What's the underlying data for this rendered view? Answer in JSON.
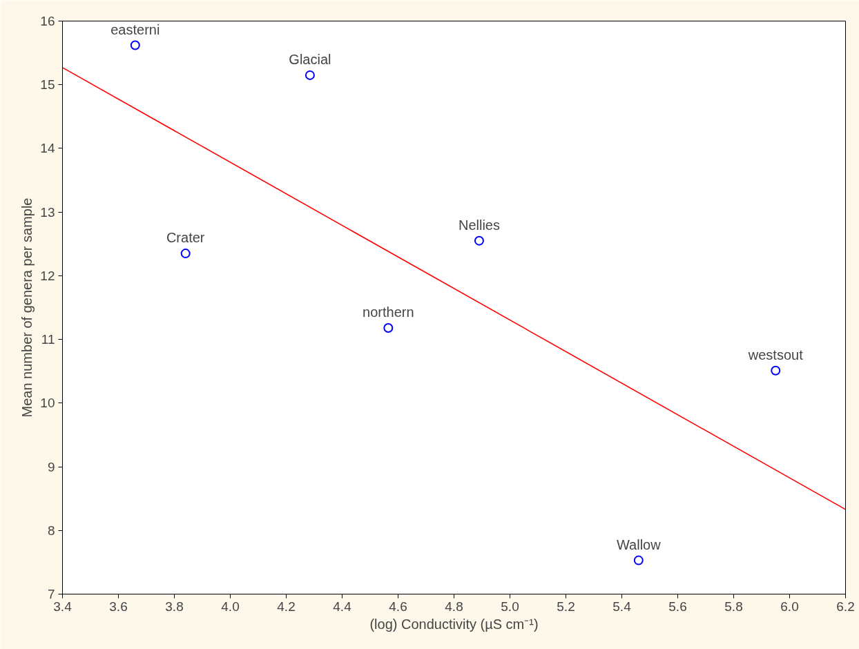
{
  "chart_data": {
    "type": "scatter",
    "xlabel": "(log) Conductivity (µS cm⁻¹)",
    "ylabel": "Mean number of genera per sample",
    "xlim": [
      3.4,
      6.2
    ],
    "ylim": [
      7,
      16
    ],
    "xticks": [
      3.4,
      3.6,
      3.8,
      {
        "value": 4.0,
        "label": "4.0"
      },
      4.2,
      4.4,
      4.6,
      4.8,
      {
        "value": 5.0,
        "label": "5.0"
      },
      5.2,
      5.4,
      5.6,
      5.8,
      {
        "value": 6.0,
        "label": "6.0"
      },
      6.2
    ],
    "yticks": [
      7,
      8,
      9,
      10,
      11,
      12,
      13,
      14,
      15,
      16
    ],
    "grid": false,
    "series": [
      {
        "marker": "circle",
        "color": "#0000ff",
        "x": [
          3.66,
          4.285,
          3.84,
          4.565,
          4.89,
          5.46,
          5.95
        ],
        "values": [
          15.62,
          15.15,
          12.35,
          11.18,
          12.55,
          7.53,
          10.51
        ]
      },
      {
        "type": "line",
        "color": "#ff0000",
        "x": [
          3.4,
          6.2
        ],
        "values": [
          15.27,
          8.33
        ]
      }
    ],
    "annotations": [
      {
        "text": "easterni",
        "x": 3.66,
        "y": 15.62
      },
      {
        "text": "Glacial",
        "x": 4.285,
        "y": 15.15
      },
      {
        "text": "Crater",
        "x": 3.84,
        "y": 12.35
      },
      {
        "text": "northern",
        "x": 4.565,
        "y": 11.18
      },
      {
        "text": "Nellies",
        "x": 4.89,
        "y": 12.55
      },
      {
        "text": "Wallow",
        "x": 5.46,
        "y": 7.53
      },
      {
        "text": "westsout",
        "x": 5.95,
        "y": 10.51
      }
    ]
  }
}
